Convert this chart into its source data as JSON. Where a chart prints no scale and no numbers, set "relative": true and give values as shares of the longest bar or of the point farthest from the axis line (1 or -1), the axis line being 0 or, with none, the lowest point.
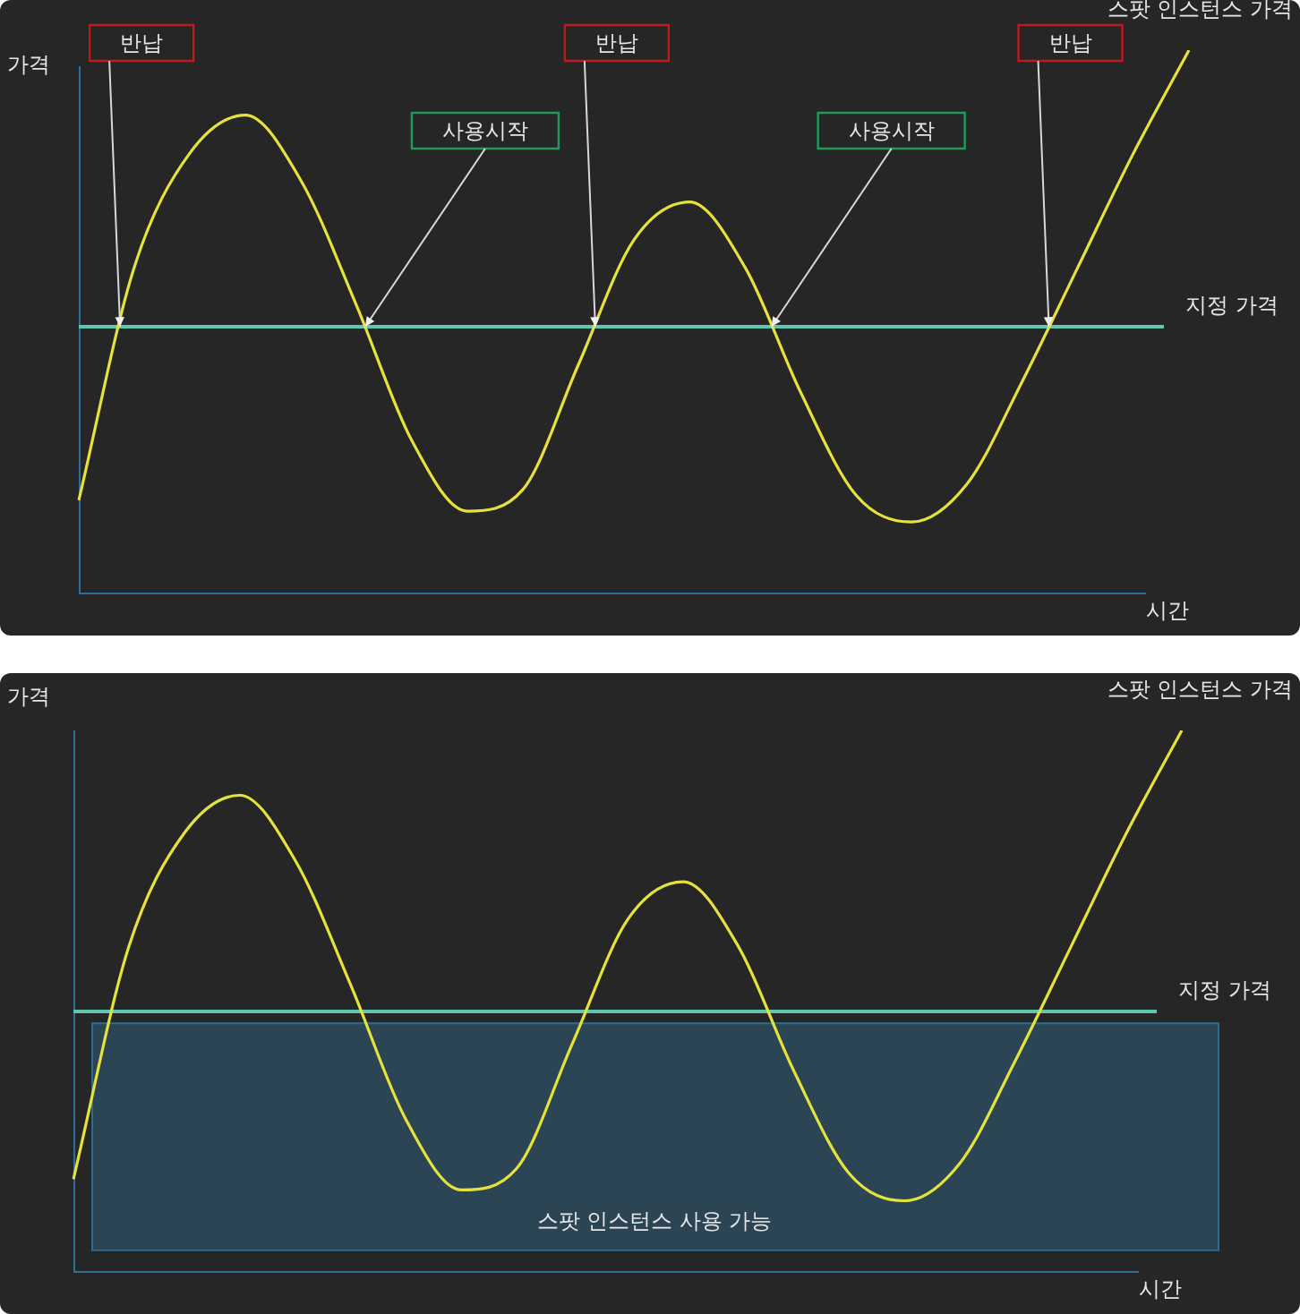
{
  "chart_data": [
    {
      "type": "line",
      "relative": true,
      "xlabel": "시간",
      "ylabel": "가격",
      "legend": false,
      "grid": false,
      "marker": "none",
      "categories": [
        null,
        null,
        null,
        null,
        null,
        null,
        null,
        null,
        null,
        null,
        null,
        null,
        null,
        null,
        null,
        null,
        null,
        null,
        null,
        null,
        null
      ],
      "series": [
        {
          "name": "스팟 인스턴스 가격",
          "color": "#e6e23c",
          "values": [
            0.17,
            0.6,
            0.81,
            0.88,
            0.76,
            0.53,
            0.28,
            0.15,
            0.19,
            0.42,
            0.65,
            0.72,
            0.6,
            0.37,
            0.18,
            0.13,
            0.2,
            0.39,
            0.6,
            0.81,
            1
          ]
        }
      ],
      "ref_lines": [
        {
          "axis": "y",
          "value": 0.49,
          "label": "지정 가격",
          "color": "#5cc8b0"
        }
      ],
      "annotations": [
        "반납",
        "사용시작",
        "반납",
        "사용시작",
        "반납"
      ]
    },
    {
      "type": "line",
      "relative": true,
      "xlabel": "시간",
      "ylabel": "가격",
      "legend": false,
      "grid": false,
      "marker": "none",
      "categories": [
        null,
        null,
        null,
        null,
        null,
        null,
        null,
        null,
        null,
        null,
        null,
        null,
        null,
        null,
        null,
        null,
        null,
        null,
        null,
        null,
        null
      ],
      "series": [
        {
          "name": "스팟 인스턴스 가격",
          "color": "#e6e23c",
          "values": [
            0.17,
            0.6,
            0.81,
            0.88,
            0.76,
            0.53,
            0.28,
            0.15,
            0.19,
            0.42,
            0.65,
            0.72,
            0.6,
            0.37,
            0.18,
            0.13,
            0.2,
            0.39,
            0.6,
            0.81,
            1
          ]
        }
      ],
      "ref_lines": [
        {
          "axis": "y",
          "value": 0.48,
          "label": "지정 가격",
          "color": "#5cc8b0"
        }
      ],
      "bands": [
        {
          "axis": "y",
          "from": 0.04,
          "to": 0.46,
          "label": "스팟 인스턴스 사용 가능",
          "color": "#2b4555"
        }
      ]
    }
  ]
}
